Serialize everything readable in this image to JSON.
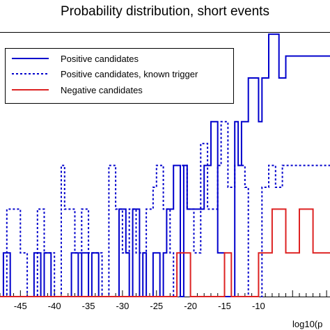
{
  "chart_data": {
    "type": "line",
    "title": "Probability distribution, short events",
    "xlabel": "log10(p",
    "ylabel": "",
    "xlim": [
      -48,
      0.5
    ],
    "ylim": [
      0,
      6.05
    ],
    "legend_position": "top-left",
    "x_tick_labels": [
      "-45",
      "-40",
      "-35",
      "-30",
      "-25",
      "-20",
      "-15",
      "-10"
    ],
    "x_tick_values": [
      -45,
      -40,
      -35,
      -30,
      -25,
      -20,
      -15,
      -10
    ],
    "series": [
      {
        "name": "Positive candidates",
        "style": "solid",
        "color": "#0000cc",
        "steps": [
          [
            -48,
            0
          ],
          [
            -47.5,
            1
          ],
          [
            -46.5,
            0
          ],
          [
            -44,
            0
          ],
          [
            -43,
            1
          ],
          [
            -42,
            0
          ],
          [
            -41.5,
            1
          ],
          [
            -40.5,
            0
          ],
          [
            -37.5,
            1
          ],
          [
            -36.5,
            0
          ],
          [
            -36,
            1
          ],
          [
            -35,
            0
          ],
          [
            -34.5,
            1
          ],
          [
            -33.5,
            0
          ],
          [
            -30.5,
            2
          ],
          [
            -29.5,
            1
          ],
          [
            -29,
            0
          ],
          [
            -28.5,
            2
          ],
          [
            -27.5,
            0
          ],
          [
            -27,
            1
          ],
          [
            -26.5,
            0
          ],
          [
            -25.5,
            1
          ],
          [
            -24.5,
            0
          ],
          [
            -24,
            1
          ],
          [
            -23.5,
            2
          ],
          [
            -22.5,
            3
          ],
          [
            -21.5,
            0
          ],
          [
            -21,
            3
          ],
          [
            -20.5,
            2
          ],
          [
            -19,
            2
          ],
          [
            -18,
            3
          ],
          [
            -17,
            4
          ],
          [
            -16,
            1
          ],
          [
            -15,
            0
          ],
          [
            -13.5,
            4
          ],
          [
            -13,
            3
          ],
          [
            -12.5,
            4
          ],
          [
            -11.5,
            5
          ],
          [
            -10,
            4
          ],
          [
            -9.5,
            5
          ],
          [
            -8.5,
            6
          ],
          [
            -7,
            5
          ],
          [
            -6,
            5.5
          ],
          [
            0.5,
            5.5
          ]
        ]
      },
      {
        "name": "Positive candidates, known trigger",
        "style": "dotted",
        "color": "#0000cc",
        "steps": [
          [
            -48,
            0
          ],
          [
            -47,
            2
          ],
          [
            -45,
            1
          ],
          [
            -44,
            0
          ],
          [
            -42.5,
            2
          ],
          [
            -41.5,
            1
          ],
          [
            -40,
            0
          ],
          [
            -39,
            3
          ],
          [
            -38.5,
            2
          ],
          [
            -37,
            1
          ],
          [
            -36,
            2
          ],
          [
            -35,
            1
          ],
          [
            -33,
            0
          ],
          [
            -32,
            3
          ],
          [
            -31,
            2
          ],
          [
            -30,
            1
          ],
          [
            -29,
            2
          ],
          [
            -28,
            1
          ],
          [
            -26.5,
            2
          ],
          [
            -25.5,
            2.5
          ],
          [
            -25,
            3
          ],
          [
            -24,
            2
          ],
          [
            -23,
            1
          ],
          [
            -22.5,
            0
          ],
          [
            -21.5,
            3
          ],
          [
            -20.5,
            2
          ],
          [
            -19.5,
            1
          ],
          [
            -18.5,
            3.5
          ],
          [
            -17.5,
            2
          ],
          [
            -16,
            3
          ],
          [
            -15.5,
            4
          ],
          [
            -14.5,
            2.5
          ],
          [
            -13.5,
            3
          ],
          [
            -12,
            2.5
          ],
          [
            -11.5,
            0
          ],
          [
            -10.5,
            0
          ],
          [
            -9.5,
            2.5
          ],
          [
            -8.5,
            3
          ],
          [
            -7.5,
            2.5
          ],
          [
            -6.5,
            3
          ],
          [
            0.5,
            3
          ]
        ]
      },
      {
        "name": "Negative candidates",
        "style": "solid",
        "color": "#dd2222",
        "steps": [
          [
            -48,
            0
          ],
          [
            -22,
            1
          ],
          [
            -20,
            0
          ],
          [
            -17,
            0
          ],
          [
            -15,
            1
          ],
          [
            -14,
            0
          ],
          [
            -12,
            0
          ],
          [
            -10,
            1
          ],
          [
            -8,
            2
          ],
          [
            -6,
            1
          ],
          [
            -4,
            2
          ],
          [
            -2,
            1
          ],
          [
            0.5,
            1
          ]
        ]
      }
    ]
  }
}
